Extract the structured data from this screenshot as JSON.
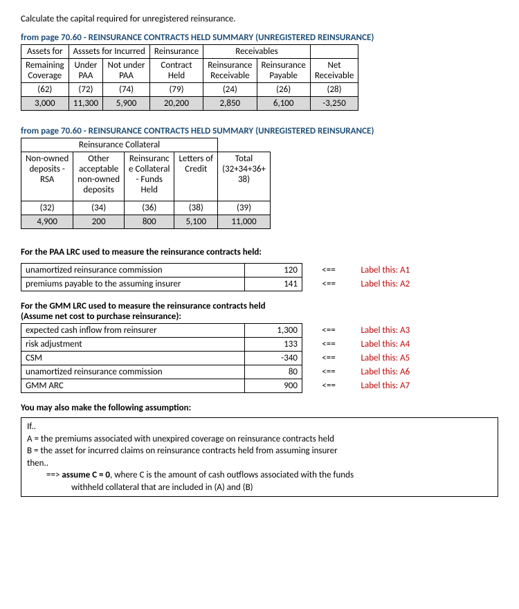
{
  "instruction": "Calculate the capital required for unregistered reinsurance.",
  "source_title": "from page 70.60 - REINSURANCE CONTRACTS HELD SUMMARY (UNREGISTERED REINSURANCE)",
  "table1": {
    "group_headers": [
      "Assets for",
      "Asssets for Incurred",
      "Reinsurance",
      "Receivables",
      ""
    ],
    "group_colspans": [
      1,
      2,
      1,
      2,
      1
    ],
    "sub_headers": [
      "Remaining Coverage",
      "Under PAA",
      "Not under PAA",
      "Contract Held",
      "Reinsurance Receivable",
      "Reinsurance Payable",
      "Net Receivable"
    ],
    "codes": [
      "(62)",
      "(72)",
      "(74)",
      "(79)",
      "(24)",
      "(26)",
      "(28)"
    ],
    "values": [
      "3,000",
      "11,300",
      "5,900",
      "20,200",
      "2,850",
      "6,100",
      "-3,250"
    ]
  },
  "table2": {
    "top_header": "Reinsurance Collateral",
    "top_colspan": 4,
    "sub_headers": [
      "Non-owned deposits - RSA",
      "Other acceptable non-owned deposits",
      "Reinsurance Collateral - Funds Held",
      "Letters of Credit",
      "Total (32+34+36+38)"
    ],
    "codes": [
      "(32)",
      "(34)",
      "(36)",
      "(38)",
      "(39)"
    ],
    "values": [
      "4,900",
      "200",
      "800",
      "5,100",
      "11,000"
    ]
  },
  "paa_section": {
    "heading": "For the PAA LRC used to measure the reinsurance contracts held:",
    "rows": [
      {
        "desc": "unamortized reinsurance commission",
        "value": "120",
        "arrow": "<==",
        "label": "Label this: A1"
      },
      {
        "desc": "premiums payable to the assuming insurer",
        "value": "141",
        "arrow": "<==",
        "label": "Label this: A2"
      }
    ]
  },
  "gmm_section": {
    "heading_l1": "For the GMM LRC used to measure the reinsurance contracts held",
    "heading_l2": "(Assume net cost to purchase reinsurance):",
    "rows": [
      {
        "desc": "expected cash inflow from reinsurer",
        "value": "1,300",
        "arrow": "<==",
        "label": "Label this: A3"
      },
      {
        "desc": "risk adjustment",
        "value": "133",
        "arrow": "<==",
        "label": "Label this: A4"
      },
      {
        "desc": "CSM",
        "value": "-340",
        "arrow": "<==",
        "label": "Label this: A5"
      },
      {
        "desc": "unamortized reinsurance commission",
        "value": "80",
        "arrow": "<==",
        "label": "Label this: A6"
      },
      {
        "desc": "GMM ARC",
        "value": "900",
        "arrow": "<==",
        "label": "Label this: A7"
      }
    ]
  },
  "assumption": {
    "heading": "You may also make the following assumption:",
    "lines": [
      "If..",
      "A  =  the premiums associated with unexpired coverage on reinsurance contracts held",
      "B  =  the asset for incurred claims on reinsurance contracts held from assuming insurer",
      "then..",
      "==> assume C = 0, where C is the amount of cash outflows associated with the funds withheld collateral that are included in (A) and (B)"
    ]
  },
  "colors": {
    "title_blue": "#1f4e79",
    "annot_red": "#c00000",
    "shade": "#d9d9d9"
  }
}
